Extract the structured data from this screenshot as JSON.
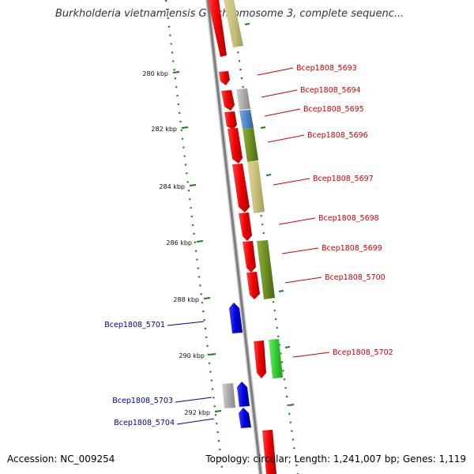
{
  "header": {
    "title": "Burkholderia vietnamiensis G4 chromosome 3, complete sequenc..."
  },
  "footer": {
    "accession": "Accession: NC_009254",
    "topology": "Topology: circular; Length: 1,241,007 bp; Genes: 1,119"
  },
  "scale": {
    "ticks": [
      "280 kbp",
      "282 kbp",
      "284 kbp",
      "286 kbp",
      "288 kbp",
      "290 kbp",
      "292 kbp"
    ]
  },
  "genes": {
    "right": [
      "Bcep1808_5693",
      "Bcep1808_5694",
      "Bcep1808_5695",
      "Bcep1808_5696",
      "Bcep1808_5697",
      "Bcep1808_5698",
      "Bcep1808_5699",
      "Bcep1808_5700",
      "Bcep1808_5702"
    ],
    "left": [
      "Bcep1808_5701",
      "Bcep1808_5703",
      "Bcep1808_5704"
    ]
  },
  "colors": {
    "forward_cds": "#ee0000",
    "reverse_cds": "#0000dd",
    "right_label": "#cc0000",
    "left_label": "#000099",
    "backbone": "#8a8a8a",
    "dots": "#1f7a1f",
    "khaki_cog": "#c8c07a",
    "gray_cog": "#aaaaaa",
    "steelblue_cog": "#4d86c4",
    "olive_cog": "#6b8e23",
    "green_cog": "#33cc33"
  }
}
